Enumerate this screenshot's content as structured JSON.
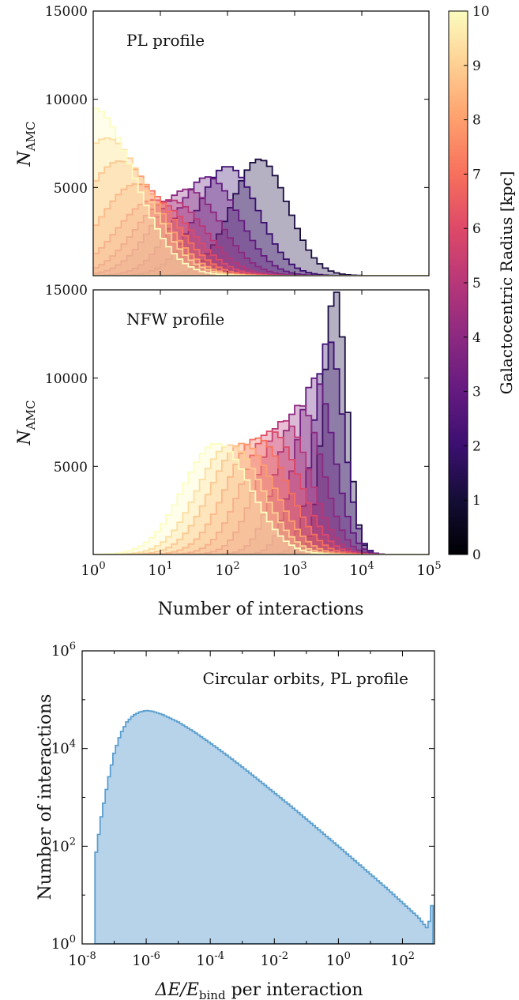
{
  "panels": [
    {
      "annotation": "PL profile",
      "ylabel": "N",
      "ylabel_sub": "AMC",
      "yticks": [
        "5000",
        "10000",
        "15000"
      ]
    },
    {
      "annotation": "NFW profile",
      "ylabel": "N",
      "ylabel_sub": "AMC",
      "yticks": [
        "5000",
        "10000",
        "15000"
      ]
    },
    {
      "annotation": "Circular orbits, PL profile",
      "ylabel": "Number of interactions"
    }
  ],
  "shared_xlabel": "Number of interactions",
  "colorbar": {
    "label": "Galactocentric Radius [kpc]",
    "ticks": [
      "0",
      "1",
      "2",
      "3",
      "4",
      "5",
      "6",
      "7",
      "8",
      "9",
      "10"
    ],
    "colormap": "magma"
  },
  "bottom_xlabel": {
    "main": "ΔE/E",
    "sub": "bind",
    "rest": " per interaction"
  },
  "chart_data": [
    {
      "type": "bar",
      "histtype": "step-filled",
      "annotation": "PL profile",
      "ylabel": "N_AMC",
      "xscale": "log",
      "xlim": [
        1,
        100000
      ],
      "ylim": [
        0,
        15000
      ],
      "yticks": [
        5000,
        10000,
        15000
      ],
      "legend": "colorbar (right)",
      "series": [
        {
          "radius_kpc": 0.5,
          "color": "#1b0c41",
          "mode_x": 300,
          "peak": 6600,
          "sigma_log10": 0.42
        },
        {
          "radius_kpc": 1.5,
          "color": "#3b0f70",
          "mode_x": 100,
          "peak": 6200,
          "sigma_log10": 0.45
        },
        {
          "radius_kpc": 2.5,
          "color": "#641a80",
          "mode_x": 50,
          "peak": 5600,
          "sigma_log10": 0.47
        },
        {
          "radius_kpc": 3.5,
          "color": "#8c2981",
          "mode_x": 25,
          "peak": 4900,
          "sigma_log10": 0.5
        },
        {
          "radius_kpc": 4.5,
          "color": "#b73779",
          "mode_x": 14,
          "peak": 4300,
          "sigma_log10": 0.52
        },
        {
          "radius_kpc": 5.5,
          "color": "#de4968",
          "mode_x": 8,
          "peak": 4300,
          "sigma_log10": 0.55
        },
        {
          "radius_kpc": 6.5,
          "color": "#f7705c",
          "mode_x": 4.5,
          "peak": 5200,
          "sigma_log10": 0.56
        },
        {
          "radius_kpc": 7.5,
          "color": "#fe9f6d",
          "mode_x": 2.5,
          "peak": 6500,
          "sigma_log10": 0.58
        },
        {
          "radius_kpc": 8.5,
          "color": "#fecf92",
          "mode_x": 1.6,
          "peak": 7800,
          "sigma_log10": 0.6
        },
        {
          "radius_kpc": 9.5,
          "color": "#fcfdbf",
          "mode_x": 1.0,
          "peak": 9500,
          "sigma_log10": 0.6
        }
      ]
    },
    {
      "type": "bar",
      "histtype": "step-filled",
      "annotation": "NFW profile",
      "ylabel": "N_AMC",
      "xlabel": "Number of interactions",
      "xscale": "log",
      "xlim": [
        1,
        100000
      ],
      "ylim": [
        0,
        15000
      ],
      "yticks": [
        5000,
        10000,
        15000
      ],
      "xticks": [
        "10^0",
        "10^1",
        "10^2",
        "10^3",
        "10^4",
        "10^5"
      ],
      "legend": "colorbar (right)",
      "series": [
        {
          "radius_kpc": 0.5,
          "color": "#1b0c41",
          "mode_x": 4000,
          "peak": 15000,
          "sigma_log10": 0.17
        },
        {
          "radius_kpc": 1.5,
          "color": "#3b0f70",
          "mode_x": 3200,
          "peak": 12200,
          "sigma_log10": 0.22
        },
        {
          "radius_kpc": 2.5,
          "color": "#641a80",
          "mode_x": 2000,
          "peak": 10000,
          "sigma_log10": 0.28
        },
        {
          "radius_kpc": 3.5,
          "color": "#8c2981",
          "mode_x": 1200,
          "peak": 8500,
          "sigma_log10": 0.33
        },
        {
          "radius_kpc": 4.5,
          "color": "#b73779",
          "mode_x": 700,
          "peak": 7600,
          "sigma_log10": 0.38
        },
        {
          "radius_kpc": 5.5,
          "color": "#de4968",
          "mode_x": 450,
          "peak": 7000,
          "sigma_log10": 0.42
        },
        {
          "radius_kpc": 6.5,
          "color": "#f7705c",
          "mode_x": 280,
          "peak": 6600,
          "sigma_log10": 0.45
        },
        {
          "radius_kpc": 7.5,
          "color": "#fe9f6d",
          "mode_x": 170,
          "peak": 6300,
          "sigma_log10": 0.47
        },
        {
          "radius_kpc": 8.5,
          "color": "#fecf92",
          "mode_x": 110,
          "peak": 6200,
          "sigma_log10": 0.48
        },
        {
          "radius_kpc": 9.5,
          "color": "#fcfdbf",
          "mode_x": 70,
          "peak": 6300,
          "sigma_log10": 0.5
        }
      ]
    },
    {
      "type": "bar",
      "histtype": "step-filled",
      "annotation": "Circular orbits, PL profile",
      "xlabel": "ΔE/E_bind per interaction",
      "ylabel": "Number of interactions",
      "xscale": "log",
      "yscale": "log",
      "xlim": [
        1e-08,
        1000
      ],
      "ylim": [
        1,
        1000000
      ],
      "xticks": [
        "10^-8",
        "10^-6",
        "10^-4",
        "10^-2",
        "10^0",
        "10^2"
      ],
      "yticks": [
        "10^0",
        "10^2",
        "10^4",
        "10^6"
      ],
      "color": "#5b9fcf",
      "x_log10": [
        -7.6,
        -7.4,
        -7.2,
        -7.0,
        -6.8,
        -6.6,
        -6.4,
        -6.2,
        -6.0,
        -5.8,
        -5.5,
        -5.0,
        -4.5,
        -4.0,
        -3.5,
        -3.0,
        -2.5,
        -2.0,
        -1.5,
        -1.0,
        -0.5,
        0.0,
        0.5,
        1.0,
        1.5,
        2.0,
        2.5,
        2.8,
        2.95
      ],
      "values": [
        50,
        400,
        2000,
        8000,
        20000,
        35000,
        48000,
        56000,
        60000,
        58000,
        50000,
        35000,
        22000,
        13000,
        7500,
        4200,
        2300,
        1250,
        680,
        360,
        190,
        100,
        52,
        27,
        14,
        7,
        3.5,
        2,
        8
      ]
    }
  ]
}
